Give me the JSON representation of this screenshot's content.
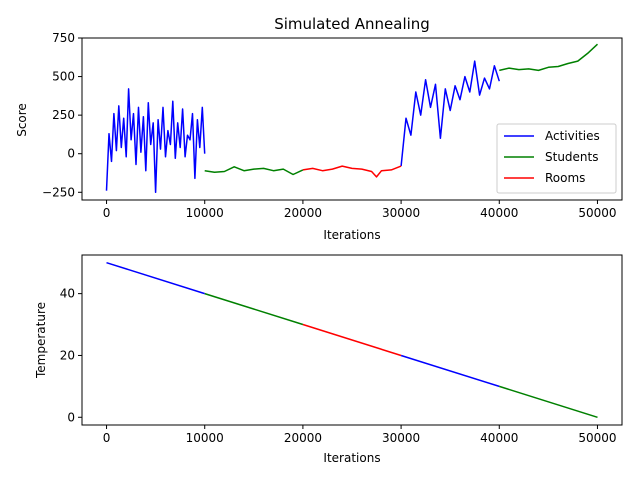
{
  "chart_data": [
    {
      "type": "line",
      "title": "Simulated Annealing",
      "xlabel": "Iterations",
      "ylabel": "Score",
      "xlim": [
        -2500,
        52500
      ],
      "ylim": [
        -300,
        750
      ],
      "xticks": [
        0,
        10000,
        20000,
        30000,
        40000,
        50000
      ],
      "yticks": [
        -250,
        0,
        250,
        500,
        750
      ],
      "grid": false,
      "legend": {
        "position": "lower right",
        "entries": [
          {
            "name": "Activities",
            "color": "#0000ff"
          },
          {
            "name": "Students",
            "color": "#008000"
          },
          {
            "name": "Rooms",
            "color": "#ff0000"
          }
        ]
      },
      "series": [
        {
          "name": "Activities",
          "color": "#0000ff",
          "segments": [
            {
              "x": [
                0,
                250,
                500,
                750,
                1000,
                1250,
                1500,
                1750,
                2000,
                2250,
                2500,
                2750,
                3000,
                3250,
                3500,
                3750,
                4000,
                4250,
                4500,
                4750,
                5000,
                5250,
                5500,
                5750,
                6000,
                6250,
                6500,
                6750,
                7000,
                7250,
                7500,
                7750,
                8000,
                8250,
                8500,
                8750,
                9000,
                9250,
                9500,
                9750,
                10000
              ],
              "y": [
                -240,
                130,
                -50,
                260,
                20,
                310,
                40,
                230,
                -20,
                420,
                90,
                260,
                -70,
                300,
                10,
                240,
                -110,
                330,
                60,
                200,
                -250,
                220,
                30,
                300,
                -20,
                150,
                60,
                340,
                -30,
                200,
                40,
                290,
                -20,
                120,
                90,
                260,
                -160,
                220,
                40,
                300,
                0
              ]
            },
            {
              "x": [
                30000,
                30500,
                31000,
                31500,
                32000,
                32500,
                33000,
                33500,
                34000,
                34500,
                35000,
                35500,
                36000,
                36500,
                37000,
                37500,
                38000,
                38500,
                39000,
                39500,
                40000
              ],
              "y": [
                -80,
                230,
                120,
                400,
                250,
                480,
                300,
                450,
                100,
                420,
                280,
                440,
                350,
                500,
                400,
                600,
                380,
                490,
                420,
                570,
                470
              ]
            }
          ]
        },
        {
          "name": "Students",
          "color": "#008000",
          "segments": [
            {
              "x": [
                10000,
                11000,
                12000,
                13000,
                14000,
                15000,
                16000,
                17000,
                18000,
                19000,
                20000
              ],
              "y": [
                -110,
                -120,
                -115,
                -85,
                -110,
                -100,
                -95,
                -110,
                -100,
                -135,
                -105
              ]
            },
            {
              "x": [
                40000,
                41000,
                42000,
                43000,
                44000,
                45000,
                46000,
                47000,
                48000,
                49000,
                50000
              ],
              "y": [
                540,
                555,
                545,
                550,
                540,
                560,
                565,
                585,
                600,
                650,
                710
              ]
            }
          ]
        },
        {
          "name": "Rooms",
          "color": "#ff0000",
          "segments": [
            {
              "x": [
                20000,
                21000,
                22000,
                23000,
                24000,
                25000,
                26000,
                27000,
                27500,
                28000,
                29000,
                30000
              ],
              "y": [
                -105,
                -95,
                -110,
                -100,
                -80,
                -95,
                -100,
                -115,
                -150,
                -110,
                -105,
                -80
              ]
            }
          ]
        }
      ]
    },
    {
      "type": "line",
      "title": "",
      "xlabel": "Iterations",
      "ylabel": "Temperature",
      "xlim": [
        -2500,
        52500
      ],
      "ylim": [
        -2.5,
        52.5
      ],
      "xticks": [
        0,
        10000,
        20000,
        30000,
        40000,
        50000
      ],
      "yticks": [
        0,
        20,
        40
      ],
      "grid": false,
      "series": [
        {
          "color": "#0000ff",
          "segments": [
            {
              "x": [
                0,
                10000
              ],
              "y": [
                50,
                40
              ]
            },
            {
              "x": [
                30000,
                40000
              ],
              "y": [
                20,
                10
              ]
            }
          ]
        },
        {
          "color": "#008000",
          "segments": [
            {
              "x": [
                10000,
                20000
              ],
              "y": [
                40,
                30
              ]
            },
            {
              "x": [
                40000,
                50000
              ],
              "y": [
                10,
                0
              ]
            }
          ]
        },
        {
          "color": "#ff0000",
          "segments": [
            {
              "x": [
                20000,
                30000
              ],
              "y": [
                30,
                20
              ]
            }
          ]
        }
      ]
    }
  ]
}
